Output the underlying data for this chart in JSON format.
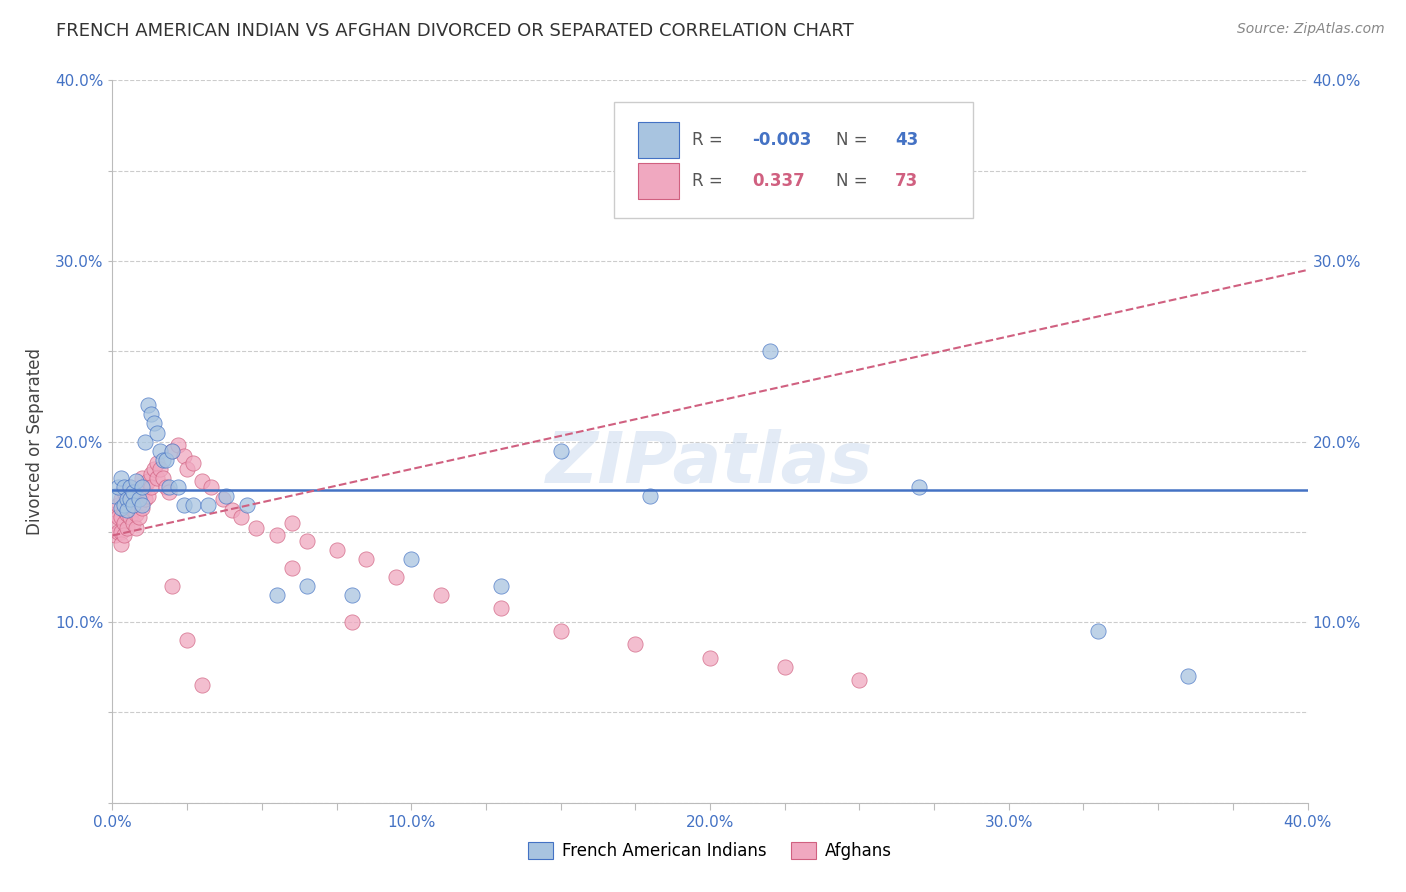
{
  "title": "FRENCH AMERICAN INDIAN VS AFGHAN DIVORCED OR SEPARATED CORRELATION CHART",
  "source": "Source: ZipAtlas.com",
  "ylabel": "Divorced or Separated",
  "xlim": [
    0.0,
    0.4
  ],
  "ylim": [
    0.0,
    0.4
  ],
  "xtick_labels": [
    "0.0%",
    "",
    "",
    "",
    "10.0%",
    "",
    "",
    "",
    "20.0%",
    "",
    "",
    "",
    "30.0%",
    "",
    "",
    "",
    "40.0%"
  ],
  "xtick_vals": [
    0.0,
    0.025,
    0.05,
    0.075,
    0.1,
    0.125,
    0.15,
    0.175,
    0.2,
    0.225,
    0.25,
    0.275,
    0.3,
    0.325,
    0.35,
    0.375,
    0.4
  ],
  "ytick_labels": [
    "",
    "",
    "10.0%",
    "",
    "20.0%",
    "",
    "30.0%",
    "",
    "40.0%"
  ],
  "ytick_vals": [
    0.0,
    0.05,
    0.1,
    0.15,
    0.2,
    0.25,
    0.3,
    0.35,
    0.4
  ],
  "blue_R": "-0.003",
  "blue_N": "43",
  "pink_R": "0.337",
  "pink_N": "73",
  "blue_color": "#a8c4e0",
  "pink_color": "#f0a8c0",
  "blue_line_color": "#4472c4",
  "pink_line_color": "#d06080",
  "watermark": "ZIPatlas",
  "background_color": "#ffffff",
  "grid_color": "#cccccc",
  "blue_x": [
    0.001,
    0.002,
    0.003,
    0.003,
    0.004,
    0.004,
    0.005,
    0.005,
    0.006,
    0.006,
    0.007,
    0.007,
    0.008,
    0.009,
    0.01,
    0.01,
    0.011,
    0.012,
    0.013,
    0.014,
    0.015,
    0.016,
    0.017,
    0.018,
    0.019,
    0.02,
    0.022,
    0.024,
    0.027,
    0.032,
    0.038,
    0.045,
    0.055,
    0.065,
    0.08,
    0.1,
    0.13,
    0.15,
    0.18,
    0.22,
    0.27,
    0.33,
    0.36
  ],
  "blue_y": [
    0.17,
    0.175,
    0.163,
    0.18,
    0.165,
    0.175,
    0.168,
    0.162,
    0.175,
    0.168,
    0.172,
    0.165,
    0.178,
    0.168,
    0.175,
    0.165,
    0.2,
    0.22,
    0.215,
    0.21,
    0.205,
    0.195,
    0.19,
    0.19,
    0.175,
    0.195,
    0.175,
    0.165,
    0.165,
    0.165,
    0.17,
    0.165,
    0.115,
    0.12,
    0.115,
    0.135,
    0.12,
    0.195,
    0.17,
    0.25,
    0.175,
    0.095,
    0.07
  ],
  "pink_x": [
    0.001,
    0.001,
    0.001,
    0.002,
    0.002,
    0.002,
    0.003,
    0.003,
    0.003,
    0.003,
    0.004,
    0.004,
    0.004,
    0.004,
    0.005,
    0.005,
    0.005,
    0.006,
    0.006,
    0.006,
    0.007,
    0.007,
    0.007,
    0.008,
    0.008,
    0.008,
    0.009,
    0.009,
    0.01,
    0.01,
    0.01,
    0.011,
    0.011,
    0.012,
    0.012,
    0.013,
    0.013,
    0.014,
    0.015,
    0.015,
    0.016,
    0.017,
    0.018,
    0.019,
    0.02,
    0.022,
    0.024,
    0.025,
    0.027,
    0.03,
    0.033,
    0.037,
    0.04,
    0.043,
    0.048,
    0.055,
    0.06,
    0.065,
    0.075,
    0.085,
    0.095,
    0.11,
    0.13,
    0.15,
    0.175,
    0.2,
    0.225,
    0.25,
    0.06,
    0.08,
    0.02,
    0.025,
    0.03
  ],
  "pink_y": [
    0.16,
    0.155,
    0.148,
    0.165,
    0.158,
    0.15,
    0.168,
    0.158,
    0.15,
    0.143,
    0.172,
    0.162,
    0.155,
    0.148,
    0.168,
    0.16,
    0.152,
    0.175,
    0.165,
    0.158,
    0.172,
    0.162,
    0.155,
    0.168,
    0.16,
    0.152,
    0.165,
    0.158,
    0.18,
    0.172,
    0.163,
    0.175,
    0.168,
    0.178,
    0.17,
    0.182,
    0.175,
    0.185,
    0.188,
    0.18,
    0.185,
    0.18,
    0.175,
    0.172,
    0.195,
    0.198,
    0.192,
    0.185,
    0.188,
    0.178,
    0.175,
    0.168,
    0.162,
    0.158,
    0.152,
    0.148,
    0.155,
    0.145,
    0.14,
    0.135,
    0.125,
    0.115,
    0.108,
    0.095,
    0.088,
    0.08,
    0.075,
    0.068,
    0.13,
    0.1,
    0.12,
    0.09,
    0.065
  ],
  "blue_line_y_at_0": 0.173,
  "blue_line_y_at_40": 0.173,
  "pink_line_y_at_0": 0.148,
  "pink_line_y_at_40": 0.295
}
